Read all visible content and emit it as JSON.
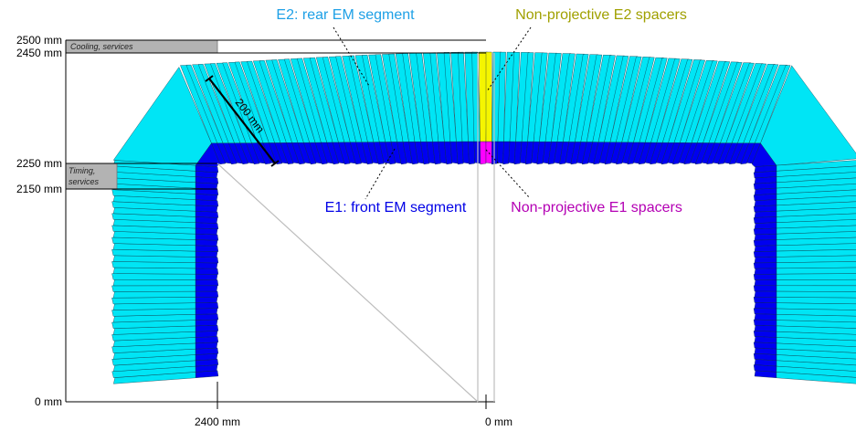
{
  "labels": {
    "e2_title": "E2: rear EM segment",
    "e2_spacers": "Non-projective E2 spacers",
    "e1_title": "E1: front EM segment",
    "e1_spacers": "Non-projective E1 spacers",
    "dimension": "200 mm"
  },
  "axis": {
    "y_ticks": [
      "2500 mm",
      "2450 mm",
      "2250 mm",
      "2150 mm",
      "0 mm"
    ],
    "x_ticks": [
      "2400 mm",
      "0 mm"
    ]
  },
  "zones": {
    "cooling": "Cooling, services",
    "timing_line1": "Timing,",
    "timing_line2": "services"
  },
  "colors": {
    "e2": "#00e5f5",
    "e1": "#0000f0",
    "e2_spacer": "#f5f500",
    "e1_spacer": "#ff00ff",
    "e2_label": "#1ea0e6",
    "e2_spacer_label": "#a0a000",
    "e1_label": "#0000e6",
    "e1_spacer_label": "#b400b4"
  }
}
